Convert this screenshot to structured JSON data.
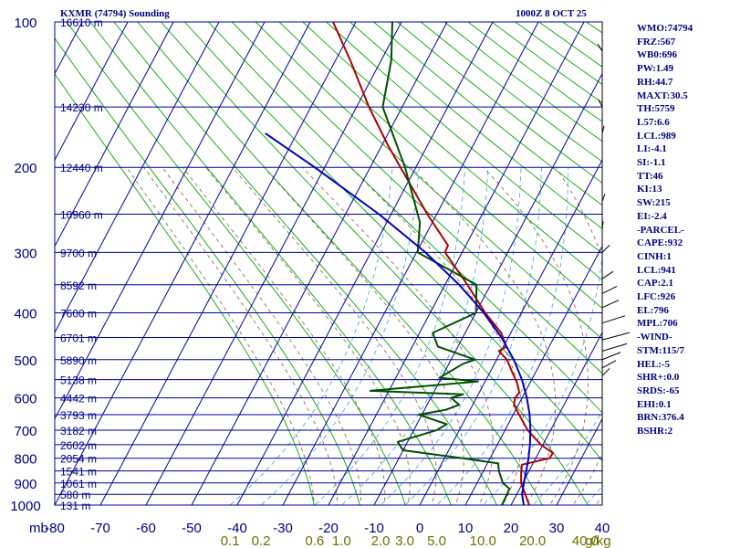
{
  "header": {
    "station": "KXMR (74794) Sounding",
    "time": "1000Z  8 OCT 25"
  },
  "indices": [
    "WMO:74794",
    "FRZ:567",
    "WB0:696",
    "PW:1.49",
    "RH:44.7",
    "MAXT:30.5",
    "TH:5759",
    "L57:6.6",
    "LCL:989",
    "LI:-4.1",
    "SI:-1.1",
    "TT:46",
    "KI:13",
    "SW:215",
    "EI:-2.4",
    "-PARCEL-",
    "CAPE:932",
    "CINH:1",
    "LCL:941",
    "CAP:2.1",
    "LFC:926",
    "EL:796",
    "MPL:706",
    "-WIND-",
    "STM:115/7",
    "HEL:-5",
    "SHR+:0.0",
    "SRDS:-65",
    "EHI:0.1",
    "BRN:376.4",
    "BSHR:2"
  ],
  "chart_data": {
    "type": "line",
    "title": "",
    "xlabel": "",
    "ylabel": "mb",
    "x_ticks": [
      "-80",
      "-70",
      "-60",
      "-50",
      "-40",
      "-30",
      "-20",
      "-10",
      "0",
      "10",
      "20",
      "30",
      "40"
    ],
    "p_ticks": [
      "100",
      "200",
      "300",
      "400",
      "500",
      "600",
      "700",
      "800",
      "900",
      "1000"
    ],
    "mixing_ratio_labels": [
      "0.1",
      "0.2",
      "0.6",
      "1.0",
      "2.0",
      "3.0",
      "5.0",
      "10.0",
      "20.0",
      "40.0",
      "g/kg"
    ],
    "height_labels": [
      {
        "p": 100,
        "label": "16610 m"
      },
      {
        "p": 150,
        "label": "14230 m"
      },
      {
        "p": 200,
        "label": "12440 m"
      },
      {
        "p": 250,
        "label": "10960 m"
      },
      {
        "p": 300,
        "label": "9700 m"
      },
      {
        "p": 350,
        "label": "8592 m"
      },
      {
        "p": 400,
        "label": "7600 m"
      },
      {
        "p": 450,
        "label": "6701 m"
      },
      {
        "p": 500,
        "label": "5890 m"
      },
      {
        "p": 550,
        "label": "5138 m"
      },
      {
        "p": 600,
        "label": "4442 m"
      },
      {
        "p": 650,
        "label": "3793 m"
      },
      {
        "p": 700,
        "label": "3182 m"
      },
      {
        "p": 750,
        "label": "2602 m"
      },
      {
        "p": 800,
        "label": "2054 m"
      },
      {
        "p": 850,
        "label": "1541 m"
      },
      {
        "p": 900,
        "label": "1061 m"
      },
      {
        "p": 950,
        "label": "580 m"
      },
      {
        "p": 1000,
        "label": "131 m"
      }
    ],
    "series": [
      {
        "color": "#b00000",
        "points": [
          [
            1006,
            25
          ],
          [
            1000,
            24
          ],
          [
            975,
            22
          ],
          [
            950,
            20
          ],
          [
            925,
            18
          ],
          [
            900,
            16
          ],
          [
            860,
            13.5
          ],
          [
            825,
            11.5
          ],
          [
            800,
            16
          ],
          [
            780,
            15.5
          ],
          [
            750,
            11
          ],
          [
            700,
            5
          ],
          [
            650,
            0
          ],
          [
            620,
            -3
          ],
          [
            600,
            -4
          ],
          [
            585,
            -4
          ],
          [
            560,
            -6
          ],
          [
            530,
            -9
          ],
          [
            500,
            -12
          ],
          [
            480,
            -15
          ],
          [
            470,
            -14
          ],
          [
            440,
            -17
          ],
          [
            400,
            -23
          ],
          [
            350,
            -30
          ],
          [
            300,
            -38
          ],
          [
            290,
            -38
          ],
          [
            250,
            -45
          ],
          [
            200,
            -54
          ],
          [
            180,
            -58
          ],
          [
            150,
            -64
          ],
          [
            120,
            -70
          ],
          [
            100,
            -75
          ]
        ]
      },
      {
        "color": "#005000",
        "points": [
          [
            1006,
            20
          ],
          [
            1000,
            18
          ],
          [
            975,
            17
          ],
          [
            950,
            16
          ],
          [
            925,
            15
          ],
          [
            900,
            12
          ],
          [
            850,
            8
          ],
          [
            820,
            6
          ],
          [
            800,
            -3
          ],
          [
            770,
            -18
          ],
          [
            740,
            -21
          ],
          [
            700,
            -15
          ],
          [
            680,
            -14
          ],
          [
            650,
            -22
          ],
          [
            635,
            -17
          ],
          [
            620,
            -15
          ],
          [
            600,
            -18
          ],
          [
            590,
            -16
          ],
          [
            580,
            -37
          ],
          [
            555,
            -15
          ],
          [
            545,
            -24
          ],
          [
            510,
            -21
          ],
          [
            500,
            -19
          ],
          [
            470,
            -29
          ],
          [
            440,
            -32
          ],
          [
            400,
            -25
          ],
          [
            350,
            -28
          ],
          [
            300,
            -44
          ],
          [
            260,
            -46
          ],
          [
            200,
            -53
          ],
          [
            150,
            -61
          ],
          [
            120,
            -61
          ],
          [
            100,
            -62
          ]
        ]
      },
      {
        "color": "#0000c0",
        "points": [
          [
            1006,
            23.2
          ],
          [
            1000,
            22.8
          ],
          [
            950,
            19.3
          ],
          [
            900,
            16.6
          ],
          [
            850,
            14.0
          ],
          [
            800,
            11.4
          ],
          [
            750,
            8.6
          ],
          [
            700,
            5.6
          ],
          [
            650,
            2.3
          ],
          [
            600,
            -1.4
          ],
          [
            550,
            -5.6
          ],
          [
            500,
            -10.5
          ],
          [
            450,
            -16.3
          ],
          [
            400,
            -23.3
          ],
          [
            350,
            -31.8
          ],
          [
            300,
            -42.3
          ],
          [
            250,
            -55.6
          ],
          [
            200,
            -72.8
          ],
          [
            170,
            -85.5
          ]
        ]
      }
    ]
  }
}
